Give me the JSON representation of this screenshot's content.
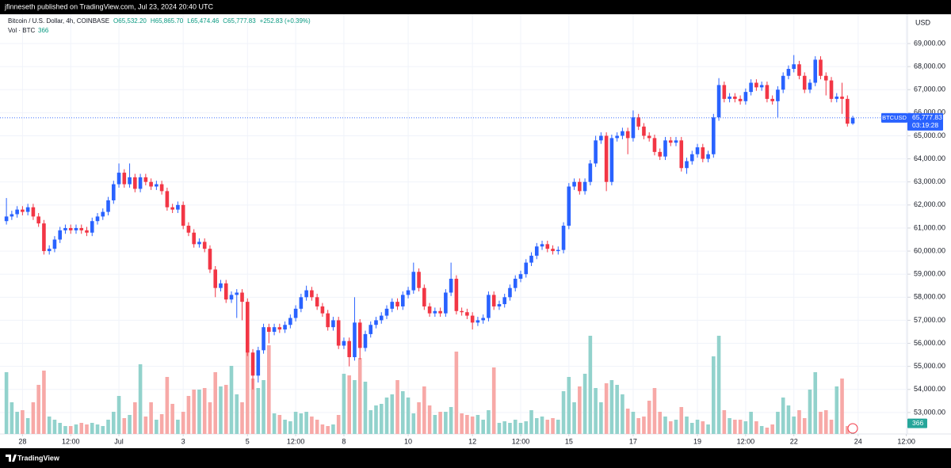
{
  "header": {
    "text": "jfinneseth published on TradingView.com, Jul 23, 2024 20:40 UTC"
  },
  "legend": {
    "symbol": "Bitcoin / U.S. Dollar, 4h, COINBASE",
    "open": "O65,532.20",
    "high": "H65,865.70",
    "low": "L65,474.46",
    "close": "C65,777.83",
    "change": "+252.83 (+0.39%)",
    "volume_title": "Vol · BTC"
  },
  "price_tag": {
    "symbol": "BTCUSD",
    "price": "65,777.83",
    "countdown": "03:19:28"
  },
  "currency": "USD",
  "footer": {
    "brand": "TradingView"
  },
  "chart_data": {
    "type": "candlestick",
    "up_color": "#2962ff",
    "down_color": "#f23645",
    "volume_up_color": "#92d2cc",
    "volume_down_color": "#f7a9a7",
    "grid": true,
    "xlim": [
      -1.2,
      168.2
    ],
    "xticks": [
      {
        "value": 3,
        "label": "28"
      },
      {
        "value": 12,
        "label": "12:00"
      },
      {
        "value": 21,
        "label": "Jul"
      },
      {
        "value": 33,
        "label": "3"
      },
      {
        "value": 45,
        "label": "5"
      },
      {
        "value": 54,
        "label": "12:00"
      },
      {
        "value": 63,
        "label": "8"
      },
      {
        "value": 75,
        "label": "10"
      },
      {
        "value": 87,
        "label": "12"
      },
      {
        "value": 96,
        "label": "12:00"
      },
      {
        "value": 105,
        "label": "15"
      },
      {
        "value": 117,
        "label": "17"
      },
      {
        "value": 129,
        "label": "19"
      },
      {
        "value": 138,
        "label": "12:00"
      },
      {
        "value": 147,
        "label": "22"
      },
      {
        "value": 159,
        "label": "24"
      },
      {
        "value": 168,
        "label": "12:00"
      }
    ],
    "ylim": [
      52070,
      70270
    ],
    "yticks": [
      {
        "value": 53000,
        "label": "53,000.00"
      },
      {
        "value": 54000,
        "label": "54,000.00"
      },
      {
        "value": 55000,
        "label": "55,000.00"
      },
      {
        "value": 56000,
        "label": "56,000.00"
      },
      {
        "value": 57000,
        "label": "57,000.00"
      },
      {
        "value": 58000,
        "label": "58,000.00"
      },
      {
        "value": 59000,
        "label": "59,000.00"
      },
      {
        "value": 60000,
        "label": "60,000.00"
      },
      {
        "value": 61000,
        "label": "61,000.00"
      },
      {
        "value": 62000,
        "label": "62,000.00"
      },
      {
        "value": 63000,
        "label": "63,000.00"
      },
      {
        "value": 64000,
        "label": "64,000.00"
      },
      {
        "value": 65000,
        "label": "65,000.00"
      },
      {
        "value": 66000,
        "label": "66,000.00"
      },
      {
        "value": 67000,
        "label": "67,000.00"
      },
      {
        "value": 68000,
        "label": "68,000.00"
      },
      {
        "value": 69000,
        "label": "69,000.00"
      }
    ],
    "y2lim": [
      0,
      26500
    ],
    "open": [
      61300,
      61500,
      61600,
      61800,
      61700,
      61900,
      61500,
      61200,
      60000,
      60100,
      60500,
      60900,
      61000,
      60900,
      61000,
      60900,
      60800,
      61300,
      61500,
      61700,
      62200,
      62900,
      63400,
      62900,
      63200,
      62700,
      63200,
      63000,
      62800,
      62900,
      62600,
      61900,
      61800,
      62000,
      61100,
      60800,
      60300,
      60400,
      60100,
      59200,
      58400,
      58600,
      57900,
      58100,
      58200,
      57800,
      55600,
      54600,
      55700,
      56700,
      56500,
      56700,
      56600,
      56800,
      57100,
      57500,
      58000,
      58300,
      58000,
      57600,
      57300,
      56700,
      57000,
      55900,
      56100,
      55400,
      56900,
      55800,
      56400,
      56800,
      57000,
      57200,
      57500,
      57800,
      57600,
      58100,
      58300,
      59100,
      58400,
      57600,
      57300,
      57400,
      57300,
      58200,
      58800,
      57400,
      57350,
      57200,
      56900,
      57000,
      57100,
      58100,
      57600,
      57700,
      58000,
      58400,
      58800,
      59000,
      59500,
      59800,
      60200,
      60300,
      60100,
      60000,
      60050,
      61100,
      62800,
      63000,
      62600,
      63000,
      63800,
      64800,
      65000,
      63000,
      64900,
      65000,
      65200,
      64900,
      65800,
      65400,
      65000,
      64900,
      64300,
      64100,
      64800,
      64700,
      64800,
      63600,
      63900,
      64200,
      64500,
      64000,
      64200,
      65800,
      67200,
      66600,
      66700,
      66600,
      66500,
      66900,
      67300,
      67100,
      67200,
      66600,
      66500,
      67000,
      67600,
      67900,
      68100,
      67600,
      67000,
      67300,
      68300,
      67600,
      67400,
      66600,
      66700,
      66600,
      65532.2
    ],
    "high": [
      62300,
      61750,
      61950,
      61950,
      62050,
      62050,
      61650,
      61350,
      60250,
      60650,
      61050,
      61150,
      61150,
      61150,
      61150,
      61050,
      61450,
      61650,
      61850,
      62350,
      63050,
      63800,
      63550,
      63800,
      63350,
      63350,
      63350,
      63150,
      63050,
      63050,
      62750,
      62050,
      62150,
      62150,
      61250,
      60950,
      60550,
      60550,
      60250,
      59350,
      58750,
      58750,
      58250,
      58350,
      58350,
      57950,
      55750,
      55850,
      56850,
      56850,
      56850,
      56850,
      56950,
      57250,
      57650,
      58150,
      58500,
      58450,
      58150,
      57750,
      57450,
      57150,
      57150,
      56250,
      56250,
      58000,
      57050,
      56550,
      56950,
      57150,
      57350,
      57650,
      57950,
      57950,
      58250,
      58450,
      59500,
      59250,
      58550,
      57750,
      57550,
      57550,
      58350,
      59500,
      58950,
      57550,
      57500,
      57350,
      57150,
      57250,
      58250,
      58250,
      57850,
      58150,
      58550,
      58950,
      59150,
      59650,
      59950,
      60350,
      60450,
      60450,
      60250,
      60200,
      61250,
      62950,
      63150,
      63150,
      63150,
      63950,
      65000,
      65150,
      65150,
      65050,
      65150,
      65350,
      65350,
      66100,
      65950,
      65550,
      65150,
      65050,
      64450,
      64950,
      64950,
      64950,
      64950,
      64050,
      64350,
      64650,
      64650,
      64350,
      65950,
      67500,
      67350,
      66850,
      66850,
      66750,
      67050,
      67450,
      67450,
      67350,
      67350,
      66750,
      67150,
      67750,
      68050,
      68500,
      68250,
      67750,
      67450,
      68450,
      68450,
      67750,
      67550,
      66850,
      67300,
      66750,
      65865.7
    ],
    "low": [
      61150,
      61350,
      61450,
      61550,
      61550,
      61350,
      61050,
      59850,
      59850,
      59950,
      60350,
      60750,
      60750,
      60750,
      60750,
      60650,
      60650,
      61150,
      61350,
      61550,
      62050,
      62750,
      62750,
      62750,
      62550,
      62550,
      62850,
      62650,
      62650,
      62450,
      61750,
      61650,
      61650,
      60950,
      60650,
      60150,
      60150,
      59950,
      59050,
      58000,
      58250,
      57750,
      57750,
      57100,
      57000,
      55450,
      54000,
      54300,
      55550,
      56000,
      56350,
      56450,
      56450,
      56650,
      56950,
      57350,
      57850,
      57850,
      57450,
      57150,
      56550,
      56550,
      55750,
      55750,
      55000,
      55250,
      55300,
      55650,
      56250,
      56650,
      56850,
      57050,
      57350,
      57450,
      57450,
      57950,
      58150,
      58250,
      57450,
      57150,
      57150,
      57150,
      57150,
      58050,
      57250,
      57200,
      57050,
      56600,
      56750,
      56850,
      56950,
      57450,
      57450,
      57550,
      57850,
      58250,
      58650,
      58850,
      59350,
      59650,
      60050,
      59950,
      59850,
      59850,
      59900,
      60950,
      62650,
      62450,
      62450,
      62850,
      63650,
      64650,
      62600,
      62850,
      64750,
      64850,
      64200,
      64750,
      65250,
      64850,
      64750,
      64150,
      63950,
      63950,
      64550,
      64550,
      63450,
      63350,
      63750,
      64050,
      63850,
      63850,
      64050,
      65650,
      66450,
      66450,
      66450,
      66350,
      66350,
      66750,
      66950,
      66950,
      66450,
      66350,
      65800,
      66850,
      67450,
      67750,
      67450,
      66850,
      66850,
      67150,
      67450,
      66750,
      66450,
      66450,
      65950,
      65400,
      65474.46
    ],
    "close": [
      61500,
      61600,
      61800,
      61700,
      61900,
      61500,
      61200,
      60000,
      60100,
      60500,
      60900,
      61000,
      60900,
      61000,
      60900,
      60800,
      61300,
      61500,
      61700,
      62200,
      62900,
      63400,
      62900,
      63200,
      62700,
      63200,
      63000,
      62800,
      62900,
      62600,
      61900,
      61800,
      62000,
      61100,
      60800,
      60300,
      60400,
      60100,
      59200,
      58400,
      58600,
      57900,
      58100,
      58200,
      57800,
      55600,
      54600,
      55700,
      56700,
      56500,
      56700,
      56600,
      56800,
      57100,
      57500,
      58000,
      58300,
      58000,
      57600,
      57300,
      56700,
      57000,
      55900,
      56100,
      55400,
      56900,
      55800,
      56400,
      56800,
      57000,
      57200,
      57500,
      57800,
      57600,
      58100,
      58300,
      59100,
      58400,
      57600,
      57300,
      57400,
      57300,
      58200,
      58800,
      57400,
      57350,
      57200,
      56900,
      57000,
      57100,
      58100,
      57600,
      57700,
      58000,
      58400,
      58800,
      59000,
      59500,
      59800,
      60200,
      60300,
      60100,
      60000,
      60050,
      61100,
      62800,
      63000,
      62600,
      63000,
      63800,
      64800,
      65000,
      63000,
      64900,
      65000,
      65200,
      64900,
      65800,
      65400,
      65000,
      64900,
      64300,
      64100,
      64800,
      64700,
      64800,
      63600,
      63900,
      64200,
      64500,
      64000,
      64200,
      65800,
      67200,
      66600,
      66700,
      66600,
      66500,
      66900,
      67300,
      67100,
      67200,
      66600,
      66500,
      67000,
      67600,
      67900,
      68100,
      67600,
      67000,
      67300,
      68300,
      67600,
      67400,
      66600,
      66700,
      66600,
      65525,
      65777.83
    ],
    "volume": [
      3900,
      2000,
      1400,
      1500,
      1000,
      2000,
      3100,
      4000,
      1100,
      900,
      700,
      500,
      500,
      600,
      700,
      600,
      700,
      600,
      500,
      900,
      1400,
      2400,
      1000,
      1200,
      2000,
      4400,
      1100,
      2000,
      900,
      1250,
      3600,
      1900,
      900,
      1400,
      2400,
      2800,
      2800,
      2900,
      2000,
      3900,
      3000,
      3100,
      4300,
      2500,
      2000,
      5300,
      3500,
      2900,
      3400,
      5600,
      1300,
      1200,
      900,
      800,
      1400,
      1300,
      1400,
      1100,
      900,
      600,
      500,
      600,
      1200,
      3800,
      3700,
      3400,
      4800,
      3300,
      1500,
      1800,
      1900,
      2300,
      2500,
      3400,
      2700,
      2300,
      1300,
      2000,
      3000,
      1800,
      1200,
      1400,
      1400,
      1700,
      5200,
      1300,
      1200,
      1100,
      1200,
      900,
      1500,
      4200,
      700,
      800,
      700,
      900,
      700,
      800,
      1500,
      1000,
      1100,
      900,
      1000,
      900,
      2700,
      3600,
      2000,
      3000,
      3800,
      6200,
      2900,
      2000,
      3200,
      3400,
      3100,
      2500,
      1600,
      1400,
      1000,
      1100,
      2100,
      2900,
      1400,
      1100,
      800,
      900,
      1700,
      1100,
      700,
      900,
      800,
      600,
      4900,
      6200,
      1500,
      1000,
      900,
      900,
      800,
      1400,
      800,
      500,
      400,
      600,
      1400,
      2300,
      1800,
      1100,
      1500,
      1000,
      2800,
      3900,
      1400,
      1500,
      900,
      3000,
      3500,
      500,
      366
    ]
  }
}
